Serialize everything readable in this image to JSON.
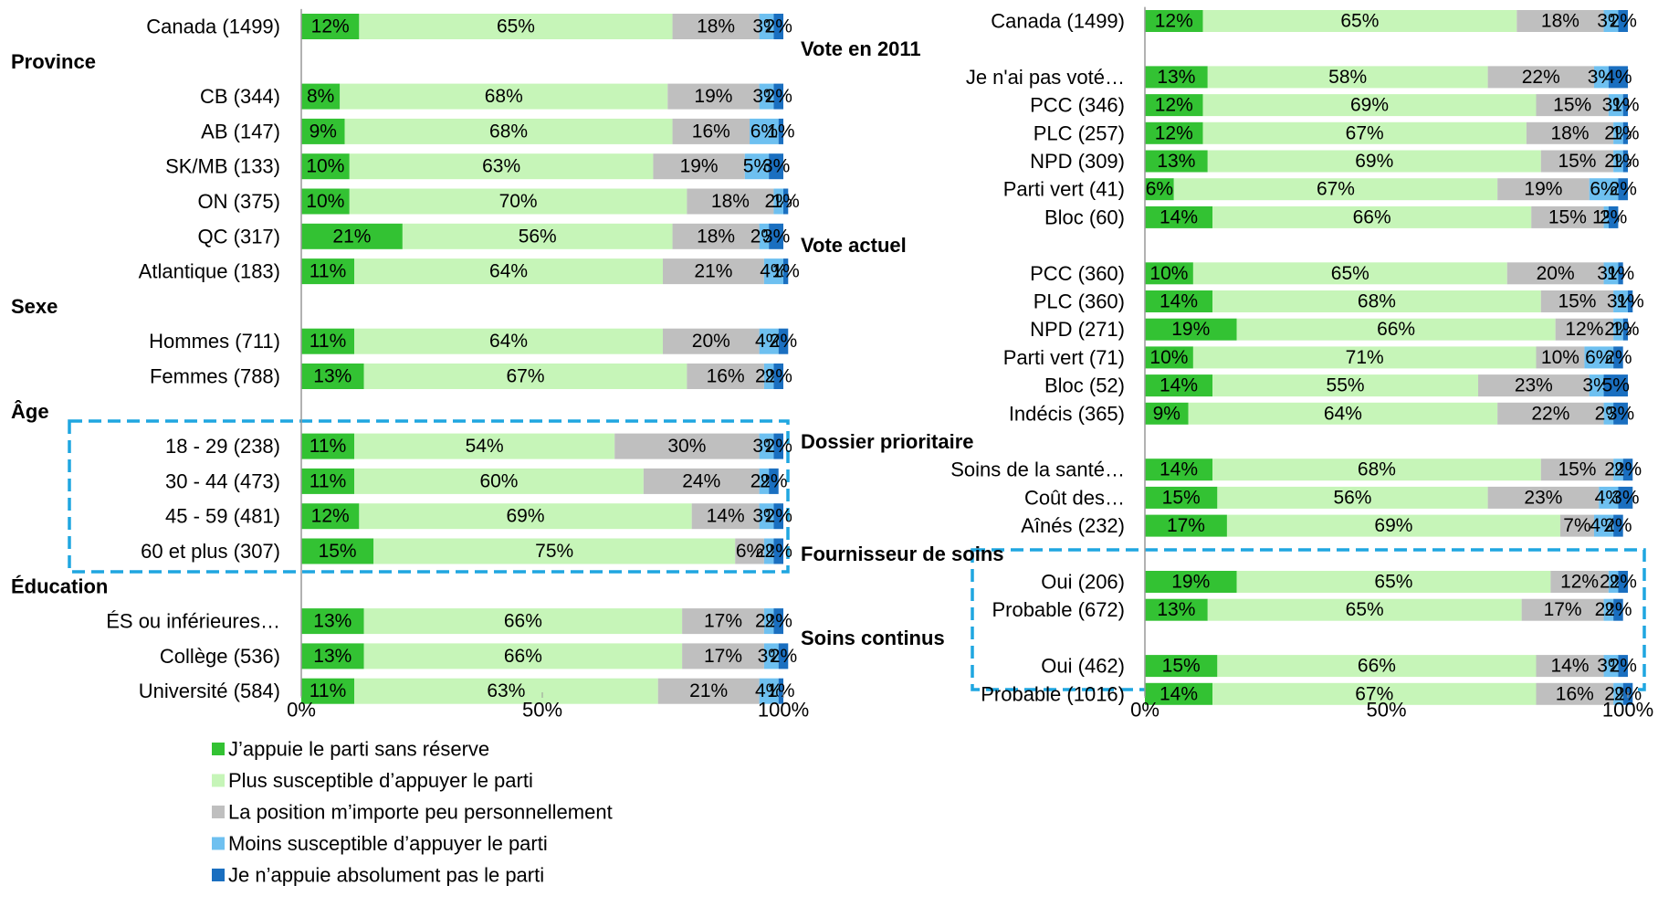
{
  "chart_data": [
    {
      "type": "stacked-bar-horizontal",
      "categories": [
        "Canada (1499)",
        "Province",
        "CB (344)",
        "AB (147)",
        "SK/MB (133)",
        "ON (375)",
        "QC (317)",
        "Atlantique (183)",
        "Sexe",
        "Hommes (711)",
        "Femmes (788)",
        "Âge",
        "18 - 29 (238)",
        "30 - 44 (473)",
        "45 - 59 (481)",
        "60 et plus (307)",
        "Éducation",
        "ÉS ou inférieures…",
        "Collège (536)",
        "Université (584)"
      ],
      "series": [
        {
          "name": "J’appuie le parti sans réserve",
          "color": "#33c233",
          "values": [
            12,
            null,
            8,
            9,
            10,
            10,
            21,
            11,
            null,
            11,
            13,
            null,
            11,
            11,
            12,
            15,
            null,
            13,
            13,
            11
          ],
          "value_labels": [
            "12%",
            null,
            "8%",
            "9%",
            "10%",
            "10%",
            "21%",
            "11%",
            null,
            "11%",
            "13%",
            null,
            "11%",
            "11%",
            "12%",
            "15%",
            null,
            "13%",
            "13%",
            "11%"
          ]
        },
        {
          "name": "Plus susceptible d’appuyer le parti",
          "color": "#c6f5b8",
          "values": [
            65,
            null,
            68,
            68,
            63,
            70,
            56,
            64,
            null,
            64,
            67,
            null,
            54,
            60,
            69,
            75,
            null,
            66,
            66,
            63
          ],
          "value_labels": [
            "65%",
            null,
            "68%",
            "68%",
            "63%",
            "70%",
            "56%",
            "64%",
            null,
            "64%",
            "67%",
            null,
            "54%",
            "60%",
            "69%",
            "75%",
            null,
            "66%",
            "66%",
            "63%"
          ]
        },
        {
          "name": "La position m’importe peu personnellement",
          "color": "#bfbfbf",
          "values": [
            18,
            null,
            19,
            16,
            19,
            18,
            18,
            21,
            null,
            20,
            16,
            null,
            30,
            24,
            14,
            6,
            null,
            17,
            17,
            21
          ],
          "value_labels": [
            "18%",
            null,
            "19%",
            "16%",
            "19%",
            "18%",
            "18%",
            "21%",
            null,
            "20%",
            "16%",
            null,
            "30%",
            "24%",
            "14%",
            "6%",
            null,
            "17%",
            "17%",
            "21%"
          ]
        },
        {
          "name": "Moins susceptible d’appuyer le parti",
          "color": "#6ec0f0",
          "values": [
            3,
            null,
            3,
            6,
            5,
            2,
            2,
            4,
            null,
            4,
            2,
            null,
            3,
            2,
            3,
            2,
            null,
            2,
            3,
            4
          ],
          "value_labels": [
            "3%",
            null,
            "3%",
            "6%",
            "5%",
            "2%",
            "2%",
            "4%",
            null,
            "4%",
            "2%",
            null,
            "3%",
            "2%",
            "3%",
            "2%",
            null,
            "2%",
            "3%",
            "4%"
          ]
        },
        {
          "name": "Je n’appuie absolument pas le parti",
          "color": "#1a6fc0",
          "values": [
            2,
            null,
            2,
            1,
            3,
            1,
            3,
            1,
            null,
            2,
            2,
            null,
            2,
            2,
            2,
            2,
            null,
            2,
            2,
            1
          ],
          "value_labels": [
            "2%",
            null,
            "2%",
            "1%",
            "3%",
            "1%",
            "3%",
            "1%",
            null,
            "2%",
            "2%",
            null,
            "2%",
            "2%",
            "2%",
            "2%",
            null,
            "2%",
            "2%",
            "1%"
          ]
        }
      ],
      "xlim": [
        0,
        100
      ],
      "xticks": [
        {
          "value": 0,
          "label": "0%"
        },
        {
          "value": 50,
          "label": "50%"
        },
        {
          "value": 100,
          "label": "100%"
        }
      ],
      "legend": "bottom-left"
    },
    {
      "type": "stacked-bar-horizontal",
      "categories": [
        "Canada (1499)",
        "Vote en 2011",
        "Je n'ai pas voté…",
        "PCC (346)",
        "PLC (257)",
        "NPD (309)",
        "Parti vert (41)",
        "Bloc (60)",
        "Vote actuel",
        "PCC (360)",
        "PLC (360)",
        "NPD (271)",
        "Parti vert (71)",
        "Bloc (52)",
        "Indécis (365)",
        "Dossier prioritaire",
        "Soins de la santé…",
        "Coût des…",
        "Aînés (232)",
        "Fournisseur de soins",
        "Oui  (206)",
        "Probable (672)",
        "Soins continus",
        "Oui  (462)",
        "Probable (1016)"
      ],
      "series": [
        {
          "color": "#33c233",
          "values": [
            12,
            null,
            13,
            12,
            12,
            13,
            6,
            14,
            null,
            10,
            14,
            19,
            10,
            14,
            9,
            null,
            14,
            15,
            17,
            null,
            19,
            13,
            null,
            15,
            14
          ],
          "value_labels": [
            "12%",
            null,
            "13%",
            "12%",
            "12%",
            "13%",
            "6%",
            "14%",
            null,
            "10%",
            "14%",
            "19%",
            "10%",
            "14%",
            "9%",
            null,
            "14%",
            "15%",
            "17%",
            null,
            "19%",
            "13%",
            null,
            "15%",
            "14%"
          ]
        },
        {
          "color": "#c6f5b8",
          "values": [
            65,
            null,
            58,
            69,
            67,
            69,
            67,
            66,
            null,
            65,
            68,
            66,
            71,
            55,
            64,
            null,
            68,
            56,
            69,
            null,
            65,
            65,
            null,
            66,
            67
          ],
          "value_labels": [
            "65%",
            null,
            "58%",
            "69%",
            "67%",
            "69%",
            "67%",
            "66%",
            null,
            "65%",
            "68%",
            "66%",
            "71%",
            "55%",
            "64%",
            null,
            "68%",
            "56%",
            "69%",
            null,
            "65%",
            "65%",
            null,
            "66%",
            "67%"
          ]
        },
        {
          "color": "#bfbfbf",
          "values": [
            18,
            null,
            22,
            15,
            18,
            15,
            19,
            15,
            null,
            20,
            15,
            12,
            10,
            23,
            22,
            null,
            15,
            23,
            7,
            null,
            12,
            17,
            null,
            14,
            16
          ],
          "value_labels": [
            "18%",
            null,
            "22%",
            "15%",
            "18%",
            "15%",
            "19%",
            "15%",
            null,
            "20%",
            "15%",
            "12%",
            "10%",
            "23%",
            "22%",
            null,
            "15%",
            "23%",
            "7%",
            null,
            "12%",
            "17%",
            null,
            "14%",
            "16%"
          ]
        },
        {
          "color": "#6ec0f0",
          "values": [
            3,
            null,
            3,
            3,
            2,
            2,
            6,
            1,
            null,
            3,
            3,
            2,
            6,
            3,
            2,
            null,
            2,
            4,
            4,
            null,
            2,
            2,
            null,
            3,
            2
          ],
          "value_labels": [
            "3%",
            null,
            "3%",
            "3%",
            "2%",
            "2%",
            "6%",
            "1%",
            null,
            "3%",
            "3%",
            "2%",
            "6%",
            "3%",
            "2%",
            null,
            "2%",
            "4%",
            "4%",
            null,
            "2%",
            "2%",
            null,
            "3%",
            "2%"
          ]
        },
        {
          "color": "#1a6fc0",
          "values": [
            2,
            null,
            4,
            1,
            1,
            1,
            2,
            2,
            null,
            1,
            1,
            1,
            2,
            5,
            3,
            null,
            2,
            3,
            2,
            null,
            2,
            2,
            null,
            2,
            2
          ],
          "value_labels": [
            "2%",
            null,
            "4%",
            "1%",
            "1%",
            "1%",
            "2%",
            "2%",
            null,
            "1%",
            "1%",
            "1%",
            "2%",
            "5%",
            "3%",
            null,
            "2%",
            "3%",
            "2%",
            null,
            "2%",
            "2%",
            null,
            "2%",
            "2%"
          ]
        }
      ],
      "xlim": [
        0,
        100
      ],
      "xticks": [
        {
          "value": 0,
          "label": "0%"
        },
        {
          "value": 50,
          "label": "50%"
        },
        {
          "value": 100,
          "label": "100%"
        }
      ]
    }
  ]
}
